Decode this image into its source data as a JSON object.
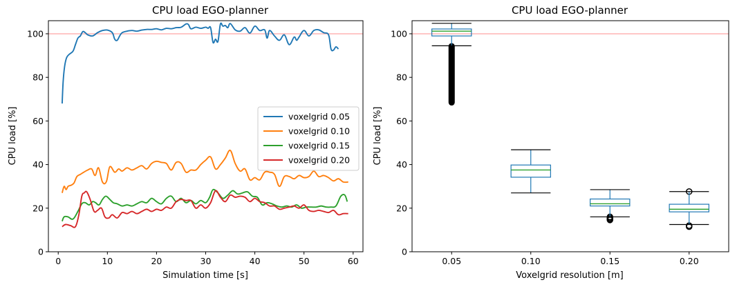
{
  "chart_data": [
    {
      "type": "line",
      "title": "CPU load EGO-planner",
      "xlabel": "Simulation time [s]",
      "ylabel": "CPU load [%]",
      "xlim": [
        -2,
        62
      ],
      "ylim": [
        0,
        106
      ],
      "xticks": [
        0,
        10,
        20,
        30,
        40,
        50,
        60
      ],
      "yticks": [
        0,
        20,
        40,
        60,
        80,
        100
      ],
      "reference_line": {
        "y": 100,
        "color": "#ffb3b3"
      },
      "legend": {
        "position": "center-right"
      },
      "series": [
        {
          "name": "voxelgrid 0.05",
          "color": "#1f77b4",
          "x": [
            0.8,
            1,
            1.3,
            1.7,
            2.2,
            3,
            3.5,
            4,
            4.5,
            5,
            5.5,
            6,
            7,
            8,
            9,
            10,
            11,
            11.5,
            12,
            12.5,
            13,
            14,
            15,
            16,
            17,
            18,
            19,
            20,
            21,
            22,
            23,
            24,
            25,
            26,
            26.5,
            27,
            28,
            29,
            30,
            30.5,
            31,
            31.5,
            32,
            32.5,
            33,
            33.5,
            34,
            34.5,
            35,
            36,
            37,
            38,
            39,
            40,
            41,
            42,
            42.5,
            43,
            44,
            45,
            46,
            47,
            48,
            48.5,
            49,
            50,
            51,
            52,
            53,
            54,
            55,
            55.5,
            56,
            56.5,
            57
          ],
          "values": [
            68,
            78,
            85,
            89,
            90.5,
            92,
            95,
            98,
            99,
            101,
            100.5,
            99.5,
            99,
            100.5,
            101.5,
            101.7,
            100.5,
            97.5,
            97,
            99,
            100.5,
            101.2,
            101.5,
            101.2,
            101.7,
            102,
            102,
            102.3,
            101.8,
            102.5,
            102.3,
            102.8,
            103,
            104.5,
            104.2,
            102.3,
            103,
            102.5,
            103,
            102.5,
            102.8,
            96,
            97.5,
            96.5,
            104.5,
            103.5,
            103.8,
            102.8,
            104.7,
            101.8,
            101.2,
            102.8,
            100.3,
            103.5,
            101.5,
            101.8,
            98,
            101.5,
            99,
            97,
            99.5,
            95,
            98.5,
            97,
            98.5,
            101.5,
            99,
            101.5,
            101.8,
            100.5,
            99.5,
            93,
            92.5,
            94,
            93
          ]
        },
        {
          "name": "voxelgrid 0.10",
          "color": "#ff7f0e",
          "x": [
            0.8,
            1.2,
            1.6,
            2,
            2.6,
            3.2,
            3.8,
            4.5,
            5.2,
            6,
            6.8,
            7.5,
            8.2,
            9,
            9.8,
            10.5,
            11.5,
            12.3,
            13,
            14,
            15,
            16,
            17,
            18,
            19,
            20,
            21,
            22,
            23,
            24,
            25,
            26,
            27,
            28,
            29,
            30,
            31,
            32,
            33,
            34,
            35,
            36,
            37,
            38,
            39,
            40,
            41,
            42,
            43,
            44,
            45,
            46,
            47,
            48,
            49,
            50,
            51,
            52,
            53,
            54,
            55,
            56,
            57,
            58,
            59
          ],
          "values": [
            27,
            30,
            28.5,
            30,
            30.5,
            31.5,
            34.5,
            35.5,
            36.5,
            37.5,
            38,
            35,
            38.5,
            32,
            32.2,
            39,
            36.5,
            38,
            37,
            38.5,
            37.5,
            38.5,
            39.5,
            38,
            40.5,
            41.5,
            41,
            40.5,
            37.5,
            41,
            40.5,
            36.5,
            37.5,
            37.5,
            40,
            42,
            43.5,
            38,
            40,
            43,
            46.5,
            40.5,
            37,
            38,
            33,
            34,
            33,
            36.5,
            36.5,
            35.5,
            30,
            34.5,
            34.5,
            33.5,
            35,
            34,
            34.5,
            37,
            34.5,
            35,
            34,
            32.5,
            33.5,
            32,
            32
          ]
        },
        {
          "name": "voxelgrid 0.15",
          "color": "#2ca02c",
          "x": [
            0.8,
            1.2,
            2,
            3,
            4,
            4.8,
            5.5,
            6.3,
            7,
            7.6,
            8.3,
            9,
            9.7,
            10.5,
            11.2,
            12,
            13,
            14,
            15,
            16,
            17,
            18,
            19,
            20,
            21,
            22,
            23,
            24,
            25,
            26,
            27,
            28,
            29,
            30,
            30.8,
            31.5,
            32.5,
            33.5,
            34.5,
            35.5,
            36.5,
            37.5,
            38.5,
            39.5,
            40.5,
            41.5,
            42.5,
            43.5,
            44.5,
            45.5,
            46.5,
            47.5,
            48.5,
            49.5,
            50.5,
            51.5,
            52.5,
            53.5,
            54.5,
            55.5,
            56.5,
            57.5,
            58.3,
            58.8
          ],
          "values": [
            14,
            16,
            16,
            15,
            18.5,
            22,
            22.5,
            21.5,
            23,
            22.5,
            21.5,
            24,
            25.5,
            24,
            22.5,
            22,
            21,
            21.5,
            21,
            22,
            23,
            22.5,
            24.5,
            23,
            22,
            24.5,
            25.5,
            23,
            24.5,
            22.5,
            23.5,
            22,
            23.5,
            22.5,
            25,
            28.5,
            27,
            24.5,
            26,
            28,
            26.5,
            27,
            27.5,
            25.5,
            25,
            21.5,
            22.5,
            22,
            21,
            20.5,
            21,
            20.5,
            21.5,
            20,
            20.5,
            20.5,
            20.5,
            21,
            20.5,
            20.5,
            21,
            25.5,
            26,
            23
          ]
        },
        {
          "name": "voxelgrid 0.20",
          "color": "#d62728",
          "x": [
            0.8,
            1.5,
            2.5,
            3.5,
            4.2,
            4.8,
            5.3,
            5.8,
            6.5,
            7.3,
            8,
            8.8,
            9.5,
            10.3,
            11,
            12,
            13,
            14,
            15,
            16,
            17,
            18,
            19,
            20,
            21,
            22,
            23,
            24,
            25,
            26,
            27,
            28,
            29,
            30,
            31,
            32,
            33,
            34,
            35,
            36,
            37,
            38,
            39,
            40,
            41,
            42,
            43,
            44,
            45,
            46,
            47,
            48,
            49,
            50,
            51,
            52,
            53,
            54,
            55,
            56,
            57,
            58,
            59
          ],
          "values": [
            11.5,
            12.5,
            12,
            11.5,
            17,
            25.5,
            27,
            27.5,
            24,
            18.5,
            19,
            20,
            16,
            15.5,
            17,
            15.5,
            18,
            17.5,
            18.5,
            17.5,
            18.5,
            19.5,
            18.5,
            19.5,
            19,
            20.5,
            20,
            23,
            24,
            23.5,
            23.5,
            20,
            21.5,
            20,
            22.5,
            28,
            25,
            23,
            26,
            25,
            25.5,
            25,
            23,
            24.5,
            23,
            22.5,
            21,
            21,
            19.5,
            20,
            20.5,
            21,
            20,
            21.5,
            19,
            18.5,
            19,
            18.5,
            18,
            19,
            17,
            17.5,
            17.5
          ]
        }
      ]
    },
    {
      "type": "box",
      "title": "CPU load EGO-planner",
      "xlabel": "Voxelgrid resolution [m]",
      "ylabel": "CPU load [%]",
      "ylim": [
        0,
        106
      ],
      "yticks": [
        0,
        20,
        40,
        60,
        80,
        100
      ],
      "categories": [
        "0.05",
        "0.10",
        "0.15",
        "0.20"
      ],
      "reference_line": {
        "y": 100,
        "color": "#ffb3b3"
      },
      "box_color": "#1f77b4",
      "median_color": "#2ca02c",
      "boxes": [
        {
          "category": "0.05",
          "whislo": 94.5,
          "q1": 99.0,
          "med": 101.2,
          "q3": 102.2,
          "whishi": 104.8,
          "fliers_range": [
            68.5,
            94.3
          ]
        },
        {
          "category": "0.10",
          "whislo": 27,
          "q1": 34.2,
          "med": 37.5,
          "q3": 39.8,
          "whishi": 46.8,
          "fliers": []
        },
        {
          "category": "0.15",
          "whislo": 16,
          "q1": 21,
          "med": 22,
          "q3": 24.2,
          "whishi": 28.5,
          "fliers": [
            14.6,
            15.0,
            15.5,
            16.0
          ]
        },
        {
          "category": "0.20",
          "whislo": 12.5,
          "q1": 18.3,
          "med": 19.5,
          "q3": 21.8,
          "whishi": 27.6,
          "fliers": [
            11.5,
            12.0,
            27.6
          ]
        }
      ]
    }
  ]
}
